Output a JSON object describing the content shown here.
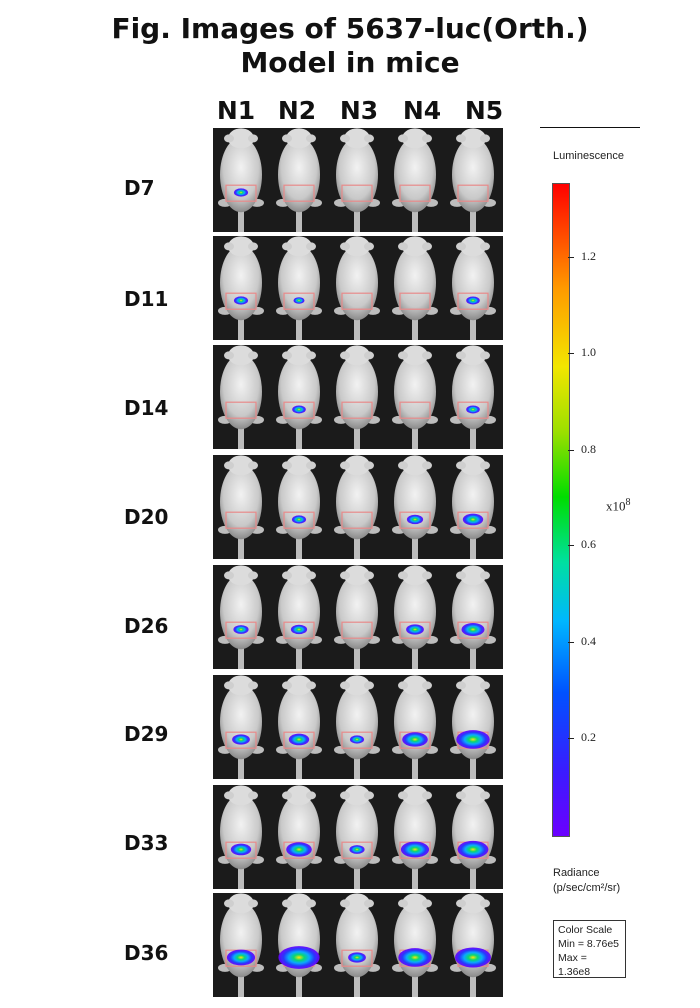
{
  "figure": {
    "title_line1": "Fig. Images of 5637-luc(Orth.)",
    "title_line2": "Model in mice",
    "columns": [
      "N1",
      "N2",
      "N3",
      "N4",
      "N5"
    ],
    "rows": [
      {
        "label": "D7",
        "signals": [
          0.08,
          0,
          0,
          0,
          0
        ]
      },
      {
        "label": "D11",
        "signals": [
          0.08,
          0.02,
          0,
          0,
          0.07
        ]
      },
      {
        "label": "D14",
        "signals": [
          0,
          0.07,
          0,
          0,
          0.07
        ]
      },
      {
        "label": "D20",
        "signals": [
          0,
          0.08,
          0,
          0.12,
          0.2
        ]
      },
      {
        "label": "D26",
        "signals": [
          0.1,
          0.12,
          0,
          0.15,
          0.25
        ]
      },
      {
        "label": "D29",
        "signals": [
          0.15,
          0.2,
          0.08,
          0.3,
          0.45
        ]
      },
      {
        "label": "D33",
        "signals": [
          0.2,
          0.3,
          0.1,
          0.35,
          0.4
        ]
      },
      {
        "label": "D36",
        "signals": [
          0.35,
          0.6,
          0.15,
          0.45,
          0.5
        ]
      }
    ]
  },
  "legend": {
    "title": "Luminescence",
    "ticks": [
      "1.2",
      "1.0",
      "0.8",
      "0.6",
      "0.4",
      "0.2"
    ],
    "unit_base": "x10",
    "unit_exp": "8",
    "radiance_line1": "Radiance",
    "radiance_line2": "(p/sec/cm²/sr)",
    "color_scale_title": "Color Scale",
    "color_scale_min": "Min = 8.76e5",
    "color_scale_max": "Max = 1.36e8"
  }
}
